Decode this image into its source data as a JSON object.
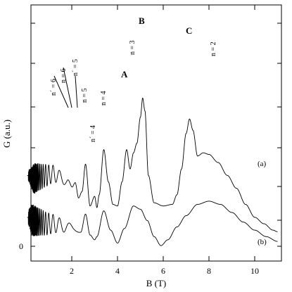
{
  "chart_data": {
    "type": "line",
    "xlabel": "B (T)",
    "ylabel": "G (a.u.)",
    "xlim": [
      0,
      11
    ],
    "ylim": [
      0,
      6.5
    ],
    "x_ticks": [
      2,
      4,
      6,
      8,
      10
    ],
    "y_tick_labels": [
      {
        "value": 0,
        "label": "0"
      }
    ],
    "grid": false,
    "series": [
      {
        "name": "(a)",
        "points": [
          [
            0.05,
            2.2
          ],
          [
            0.3,
            2.1
          ],
          [
            0.6,
            2.15
          ],
          [
            0.9,
            2.2
          ],
          [
            1.2,
            2.25
          ],
          [
            1.5,
            2.15
          ],
          [
            1.8,
            2.0
          ],
          [
            2.0,
            1.8
          ],
          [
            2.15,
            2.0
          ],
          [
            2.3,
            1.5
          ],
          [
            2.45,
            1.7
          ],
          [
            2.6,
            2.55
          ],
          [
            2.8,
            1.25
          ],
          [
            3.0,
            1.55
          ],
          [
            3.1,
            1.2
          ],
          [
            3.2,
            1.6
          ],
          [
            3.4,
            3.0
          ],
          [
            3.6,
            2.0
          ],
          [
            3.8,
            1.3
          ],
          [
            4.0,
            1.25
          ],
          [
            4.2,
            2.0
          ],
          [
            4.4,
            3.0
          ],
          [
            4.55,
            2.4
          ],
          [
            4.7,
            2.9
          ],
          [
            4.85,
            3.2
          ],
          [
            5.0,
            4.0
          ],
          [
            5.1,
            4.6
          ],
          [
            5.2,
            4.2
          ],
          [
            5.35,
            2.2
          ],
          [
            5.6,
            1.35
          ],
          [
            6.0,
            1.25
          ],
          [
            6.4,
            1.3
          ],
          [
            6.6,
            1.6
          ],
          [
            6.8,
            2.4
          ],
          [
            7.0,
            3.5
          ],
          [
            7.15,
            3.95
          ],
          [
            7.3,
            3.6
          ],
          [
            7.5,
            2.8
          ],
          [
            7.75,
            2.9
          ],
          [
            8.0,
            2.85
          ],
          [
            8.4,
            2.6
          ],
          [
            8.8,
            2.2
          ],
          [
            9.2,
            1.8
          ],
          [
            9.6,
            1.3
          ],
          [
            10.0,
            0.9
          ],
          [
            10.4,
            0.7
          ],
          [
            10.8,
            0.5
          ],
          [
            11.0,
            0.45
          ]
        ]
      },
      {
        "name": "(b)",
        "points": [
          [
            0.05,
            0.9
          ],
          [
            0.3,
            0.8
          ],
          [
            0.6,
            0.75
          ],
          [
            0.9,
            0.7
          ],
          [
            1.2,
            0.7
          ],
          [
            1.5,
            0.65
          ],
          [
            1.8,
            0.6
          ],
          [
            2.1,
            0.55
          ],
          [
            2.4,
            0.45
          ],
          [
            2.6,
            1.0
          ],
          [
            2.8,
            0.35
          ],
          [
            3.0,
            0.2
          ],
          [
            3.1,
            0.3
          ],
          [
            3.4,
            1.1
          ],
          [
            3.7,
            0.5
          ],
          [
            4.0,
            0.1
          ],
          [
            4.3,
            0.55
          ],
          [
            4.7,
            1.25
          ],
          [
            5.0,
            1.15
          ],
          [
            5.3,
            0.8
          ],
          [
            5.6,
            0.3
          ],
          [
            5.9,
            0.02
          ],
          [
            6.2,
            0.2
          ],
          [
            6.6,
            0.6
          ],
          [
            7.0,
            0.95
          ],
          [
            7.5,
            1.3
          ],
          [
            8.0,
            1.4
          ],
          [
            8.5,
            1.3
          ],
          [
            9.0,
            1.05
          ],
          [
            9.5,
            0.75
          ],
          [
            10.0,
            0.5
          ],
          [
            10.5,
            0.3
          ],
          [
            11.0,
            0.15
          ]
        ]
      }
    ],
    "annotations": [
      "n´ = 6",
      "n = 6",
      "n´ = 5",
      "n = 5",
      "n´ = 4",
      "n = 4",
      "n = 3",
      "n = 2",
      "A",
      "B",
      "C"
    ]
  }
}
